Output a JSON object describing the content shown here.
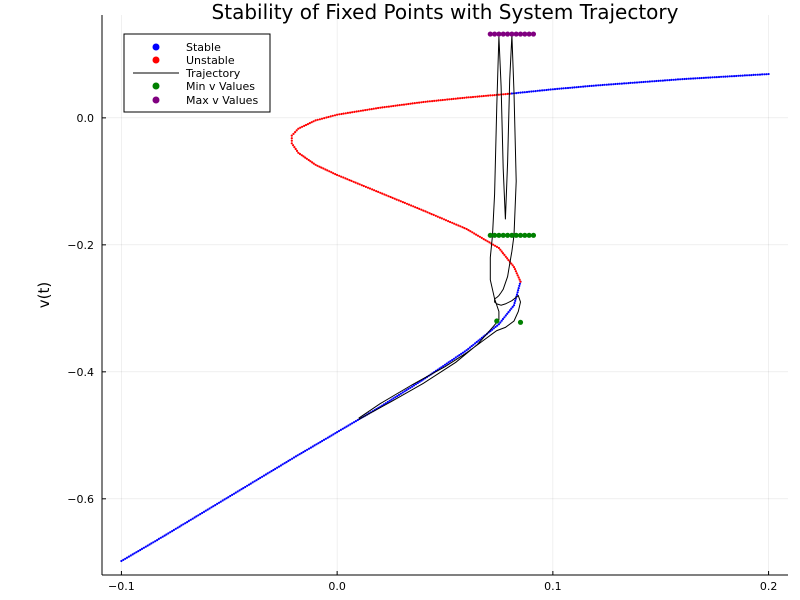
{
  "chart_data": {
    "type": "scatter",
    "title": "Stability of Fixed Points with System Trajectory",
    "xlabel": "",
    "ylabel": "v(t)",
    "xlim": [
      -0.109,
      0.209
    ],
    "ylim": [
      -0.72,
      0.162
    ],
    "x_ticks": [
      -0.1,
      0.0,
      0.1,
      0.2
    ],
    "x_tick_labels": [
      "−0.1",
      "0.0",
      "0.1",
      "0.2"
    ],
    "y_ticks": [
      -0.6,
      -0.4,
      -0.2,
      0.0
    ],
    "y_tick_labels": [
      "−0.6",
      "−0.4",
      "−0.2",
      "0.0"
    ],
    "grid": true,
    "legend_position": "top-left",
    "series": [
      {
        "name": "Stable",
        "kind": "markers",
        "color": "#0000ff",
        "x": [
          -0.1,
          -0.08,
          -0.06,
          -0.04,
          -0.02,
          0.0,
          0.02,
          0.04,
          0.06,
          0.075,
          0.082,
          0.085
        ],
        "y": [
          -0.698,
          -0.658,
          -0.617,
          -0.576,
          -0.535,
          -0.495,
          -0.455,
          -0.412,
          -0.366,
          -0.325,
          -0.295,
          -0.258
        ]
      },
      {
        "name": "Stable",
        "kind": "markers",
        "color": "#0000ff",
        "x": [
          0.08,
          0.1,
          0.12,
          0.14,
          0.16,
          0.18,
          0.2
        ],
        "y": [
          0.038,
          0.045,
          0.051,
          0.056,
          0.061,
          0.065,
          0.069
        ]
      },
      {
        "name": "Unstable",
        "kind": "markers",
        "color": "#ff0000",
        "x": [
          0.085,
          0.082,
          0.075,
          0.06,
          0.04,
          0.02,
          0.0,
          -0.01,
          -0.018,
          -0.021,
          -0.021,
          -0.018,
          -0.01,
          0.0,
          0.02,
          0.04,
          0.06,
          0.08
        ],
        "y": [
          -0.258,
          -0.235,
          -0.205,
          -0.175,
          -0.146,
          -0.118,
          -0.09,
          -0.074,
          -0.055,
          -0.04,
          -0.028,
          -0.017,
          -0.004,
          0.005,
          0.016,
          0.025,
          0.032,
          0.038
        ]
      },
      {
        "name": "Trajectory",
        "kind": "line",
        "color": "#000000",
        "x": [
          0.01,
          0.025,
          0.04,
          0.055,
          0.065,
          0.072,
          0.075,
          0.075,
          0.073,
          0.071,
          0.071,
          0.072,
          0.073,
          0.074,
          0.075,
          0.076,
          0.077,
          0.078,
          0.079,
          0.08,
          0.081,
          0.082,
          0.083,
          0.082,
          0.081,
          0.08,
          0.079,
          0.078,
          0.077,
          0.076,
          0.075,
          0.074,
          0.073,
          0.073,
          0.074,
          0.076,
          0.078,
          0.081,
          0.084,
          0.085,
          0.084,
          0.082,
          0.078,
          0.074,
          0.072,
          0.068,
          0.06,
          0.05,
          0.035,
          0.02,
          0.01
        ],
        "y": [
          -0.475,
          -0.447,
          -0.418,
          -0.385,
          -0.357,
          -0.33,
          -0.318,
          -0.305,
          -0.285,
          -0.255,
          -0.22,
          -0.185,
          -0.12,
          0.02,
          0.128,
          0.05,
          -0.08,
          -0.16,
          -0.07,
          0.06,
          0.13,
          0.04,
          -0.1,
          -0.185,
          -0.21,
          -0.23,
          -0.25,
          -0.26,
          -0.27,
          -0.275,
          -0.28,
          -0.283,
          -0.285,
          -0.29,
          -0.293,
          -0.295,
          -0.293,
          -0.288,
          -0.28,
          -0.29,
          -0.305,
          -0.32,
          -0.33,
          -0.335,
          -0.34,
          -0.35,
          -0.37,
          -0.392,
          -0.42,
          -0.45,
          -0.473
        ]
      },
      {
        "name": "Min v Values",
        "kind": "markers",
        "color": "#008000",
        "x": [
          0.071,
          0.073,
          0.075,
          0.077,
          0.079,
          0.081,
          0.083,
          0.085,
          0.087,
          0.089,
          0.091,
          0.074,
          0.085
        ],
        "y": [
          -0.185,
          -0.185,
          -0.185,
          -0.185,
          -0.185,
          -0.185,
          -0.185,
          -0.185,
          -0.185,
          -0.185,
          -0.185,
          -0.32,
          -0.322
        ]
      },
      {
        "name": "Max v Values",
        "kind": "markers",
        "color": "#800080",
        "x": [
          0.071,
          0.073,
          0.075,
          0.077,
          0.079,
          0.081,
          0.083,
          0.085,
          0.087,
          0.089,
          0.091
        ],
        "y": [
          0.132,
          0.132,
          0.132,
          0.132,
          0.132,
          0.132,
          0.132,
          0.132,
          0.132,
          0.132,
          0.132
        ]
      }
    ]
  }
}
